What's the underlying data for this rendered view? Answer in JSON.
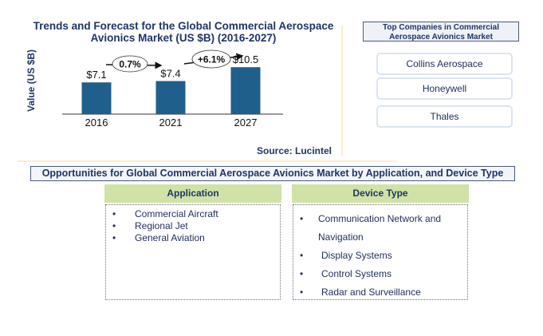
{
  "chart_data": {
    "type": "bar",
    "title": "Trends and Forecast for the Global Commercial Aerospace Avionics Market (US $B) (2016-2027)",
    "title_lines": [
      "Trends and Forecast for the Global Commercial Aerospace",
      "Avionics Market (US $B) (2016-2027)"
    ],
    "xlabel": "",
    "ylabel": "Value (US $B)",
    "categories": [
      "2016",
      "2021",
      "2027"
    ],
    "values": [
      7.1,
      7.4,
      10.5
    ],
    "data_labels": [
      "$7.1",
      "$7.4",
      "$10.5"
    ],
    "ylim": [
      0,
      12
    ],
    "grid": false,
    "bar_color": "#1f5f8b",
    "growth_annotations": [
      {
        "from": "2016",
        "to": "2021",
        "label": "0.7%"
      },
      {
        "from": "2021",
        "to": "2027",
        "label": "+6.1%"
      }
    ],
    "source": "Source: Lucintel"
  },
  "companies": {
    "title_lines": [
      "Top Companies in Commercial",
      "Aerospace Avionics Market"
    ],
    "items": [
      "Collins Aerospace",
      "Honeywell",
      "Thales"
    ]
  },
  "opportunities": {
    "banner": "Opportunities for Global Commercial Aerospace Avionics Market by Application, and Device Type",
    "application": {
      "header": "Application",
      "items": [
        "Commercial Aircraft",
        "Regional Jet",
        "General Aviation"
      ]
    },
    "device_type": {
      "header": "Device Type",
      "items": [
        "Communication Network and",
        "Navigation",
        "Display Systems",
        "Control Systems",
        "Radar and Surveillance"
      ]
    },
    "bullet": "•"
  },
  "colors": {
    "title": "#1f3565",
    "header_green": "#cfe3a6",
    "divider": "#fbefc6"
  }
}
